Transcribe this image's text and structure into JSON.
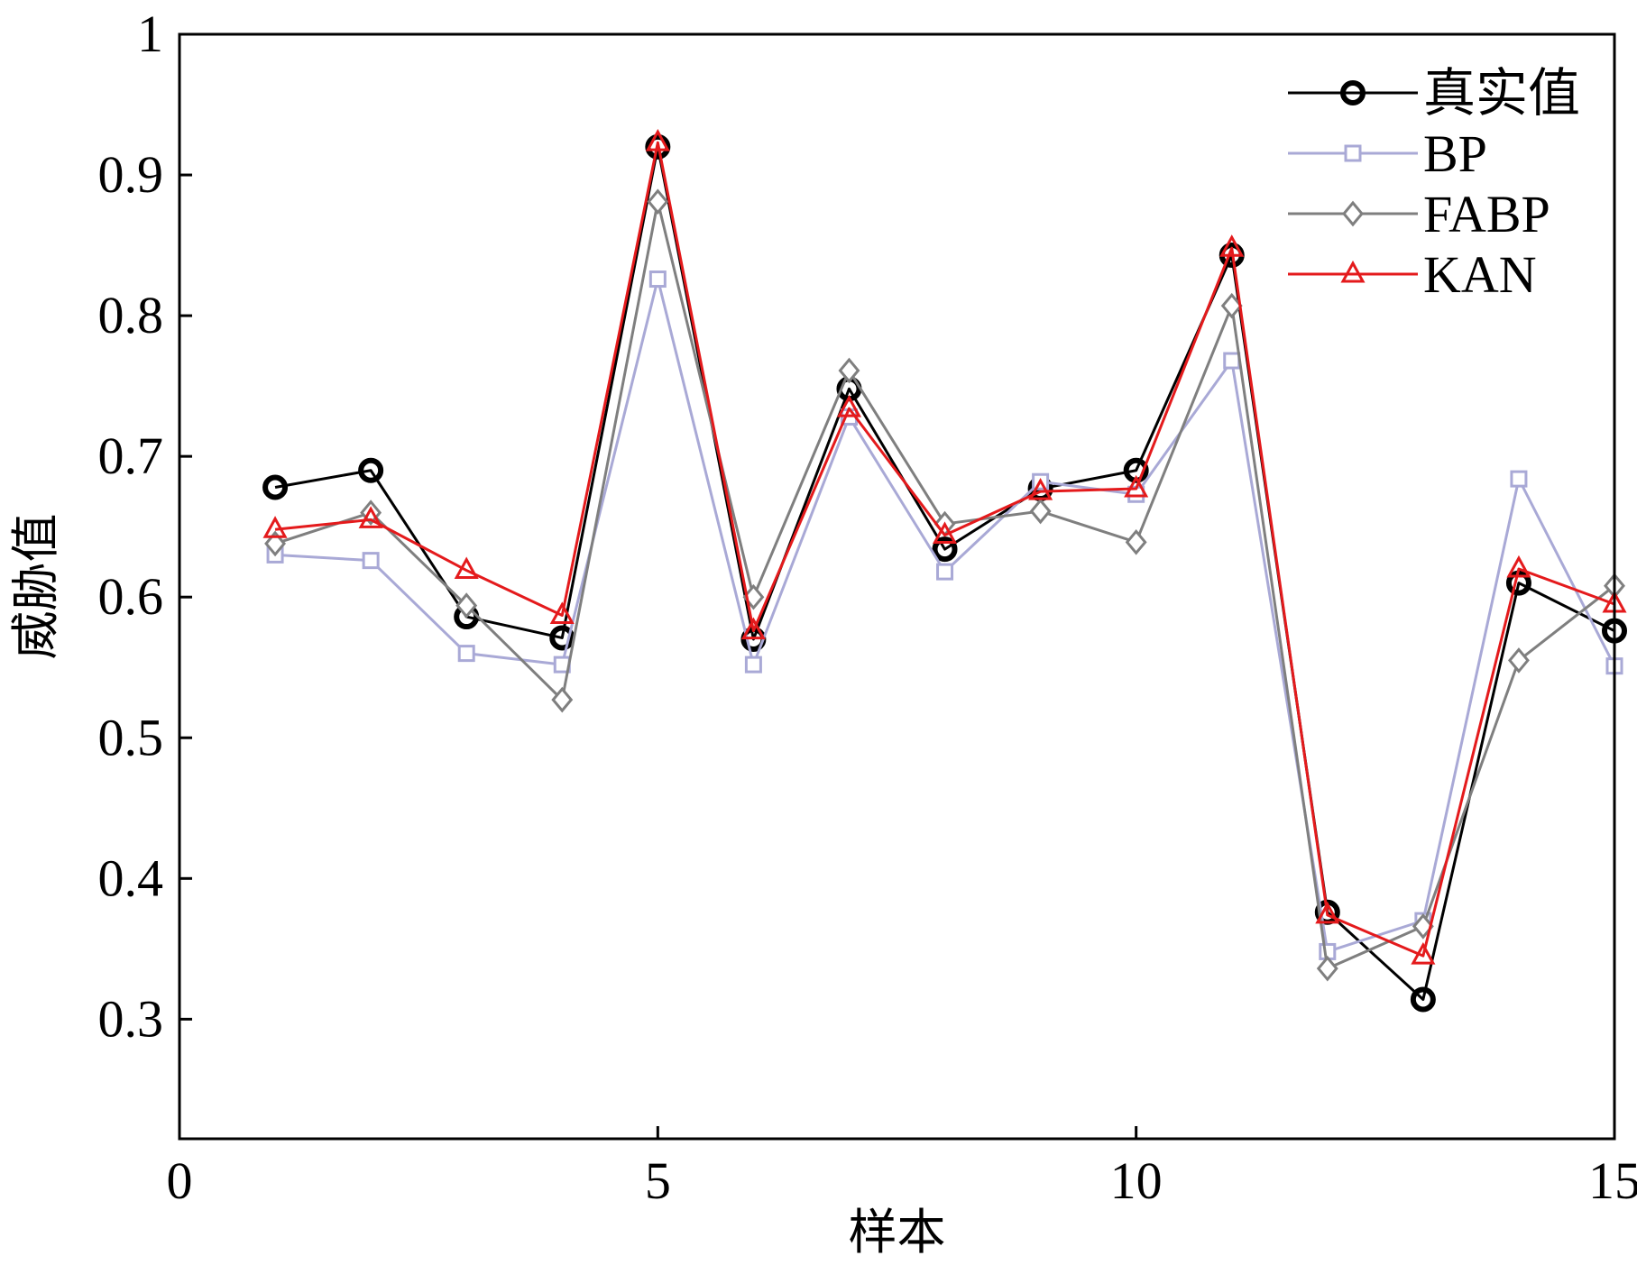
{
  "chart_data": {
    "type": "line",
    "xlabel": "样本",
    "ylabel": "威胁值",
    "xlim": [
      0,
      15
    ],
    "ylim": [
      0.215,
      1.0
    ],
    "x_ticks": [
      0,
      5,
      10,
      15
    ],
    "x_tick_labels": [
      "0",
      "5",
      "10",
      "15"
    ],
    "y_ticks": [
      0.3,
      0.4,
      0.5,
      0.6,
      0.7,
      0.8,
      0.9,
      1.0
    ],
    "y_tick_labels": [
      "0.3",
      "0.4",
      "0.5",
      "0.6",
      "0.7",
      "0.8",
      "0.9",
      "1"
    ],
    "grid": false,
    "legend_position": "top-right",
    "x": [
      1,
      2,
      3,
      4,
      5,
      6,
      7,
      8,
      9,
      10,
      11,
      12,
      13,
      14,
      15
    ],
    "series": [
      {
        "name": "真实值",
        "marker": "circle",
        "color": "#000000",
        "values": [
          0.678,
          0.69,
          0.586,
          0.571,
          0.92,
          0.57,
          0.748,
          0.634,
          0.677,
          0.69,
          0.843,
          0.376,
          0.314,
          0.61,
          0.576
        ]
      },
      {
        "name": "BP",
        "marker": "square",
        "color": "#a9a9d6",
        "values": [
          0.63,
          0.626,
          0.56,
          0.552,
          0.826,
          0.552,
          0.728,
          0.618,
          0.682,
          0.673,
          0.768,
          0.348,
          0.37,
          0.684,
          0.551
        ]
      },
      {
        "name": "FABP",
        "marker": "diamond",
        "color": "#7f7f7f",
        "values": [
          0.638,
          0.66,
          0.594,
          0.527,
          0.881,
          0.6,
          0.761,
          0.652,
          0.661,
          0.639,
          0.807,
          0.336,
          0.366,
          0.555,
          0.608
        ]
      },
      {
        "name": "KAN",
        "marker": "triangle",
        "color": "#e41a1c",
        "values": [
          0.648,
          0.655,
          0.619,
          0.587,
          0.923,
          0.576,
          0.734,
          0.644,
          0.675,
          0.677,
          0.848,
          0.374,
          0.345,
          0.62,
          0.595
        ]
      }
    ]
  }
}
